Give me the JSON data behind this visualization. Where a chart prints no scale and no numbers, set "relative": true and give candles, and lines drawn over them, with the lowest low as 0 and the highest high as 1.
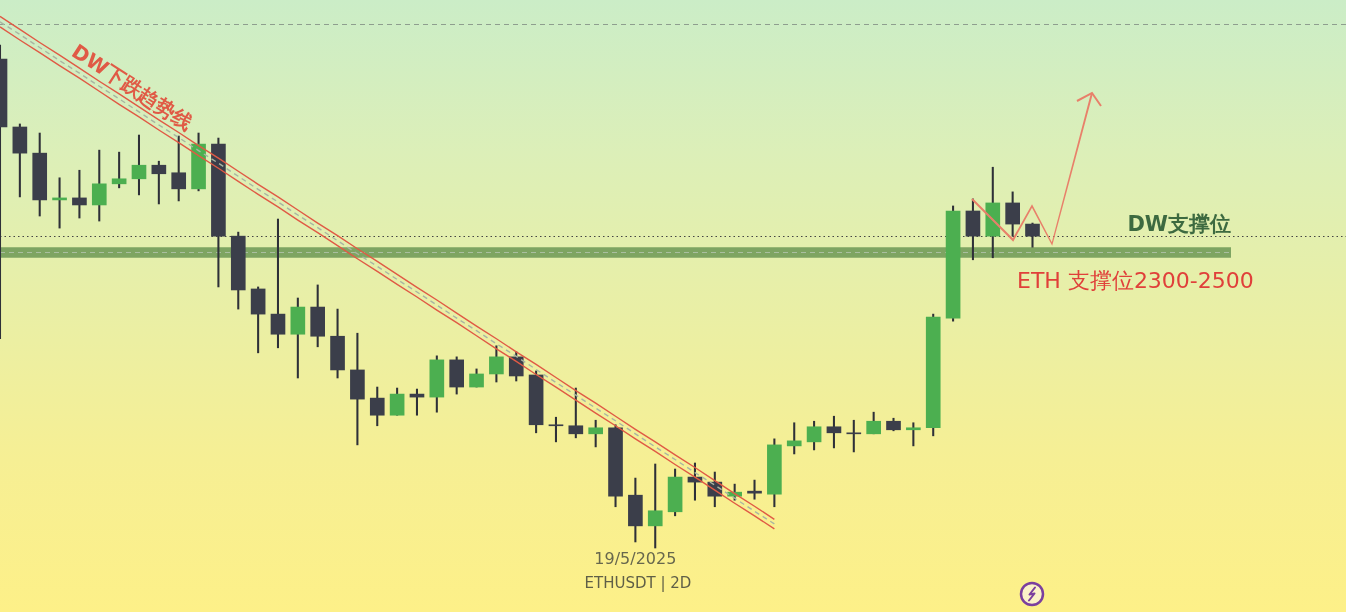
{
  "chart_data": {
    "type": "candlestick",
    "relative": true,
    "tick_labels": "x",
    "categories": [
      null,
      null,
      null,
      null,
      null,
      null,
      null,
      null,
      null,
      null,
      null,
      null,
      null,
      null,
      null,
      null,
      null,
      null,
      null,
      null,
      null,
      null,
      null,
      null,
      null,
      null,
      null,
      null,
      null,
      null,
      null,
      null,
      "19/5/2025",
      null,
      null,
      null,
      null,
      null,
      null,
      null,
      null,
      null,
      null,
      null,
      null,
      null,
      null,
      null,
      null,
      null,
      null,
      null,
      null
    ],
    "ohlc": [
      [
        0.972,
        1,
        0.416,
        0.837
      ],
      [
        0.837,
        0.843,
        0.698,
        0.785
      ],
      [
        0.785,
        0.825,
        0.66,
        0.692
      ],
      [
        0.692,
        0.736,
        0.636,
        0.696
      ],
      [
        0.696,
        0.751,
        0.656,
        0.682
      ],
      [
        0.682,
        0.791,
        0.65,
        0.724
      ],
      [
        0.724,
        0.787,
        0.716,
        0.734
      ],
      [
        0.734,
        0.821,
        0.702,
        0.761
      ],
      [
        0.761,
        0.769,
        0.684,
        0.744
      ],
      [
        0.746,
        0.819,
        0.69,
        0.714
      ],
      [
        0.714,
        0.825,
        0.71,
        0.803
      ],
      [
        0.803,
        0.815,
        0.519,
        0.62
      ],
      [
        0.62,
        0.628,
        0.475,
        0.513
      ],
      [
        0.515,
        0.519,
        0.388,
        0.465
      ],
      [
        0.465,
        0.654,
        0.398,
        0.425
      ],
      [
        0.425,
        0.497,
        0.338,
        0.479
      ],
      [
        0.479,
        0.523,
        0.4,
        0.421
      ],
      [
        0.421,
        0.475,
        0.338,
        0.354
      ],
      [
        0.354,
        0.427,
        0.205,
        0.296
      ],
      [
        0.298,
        0.32,
        0.243,
        0.264
      ],
      [
        0.264,
        0.318,
        0.264,
        0.306
      ],
      [
        0.306,
        0.316,
        0.264,
        0.3
      ],
      [
        0.3,
        0.382,
        0.27,
        0.374
      ],
      [
        0.374,
        0.38,
        0.306,
        0.32
      ],
      [
        0.32,
        0.356,
        0.32,
        0.346
      ],
      [
        0.346,
        0.402,
        0.33,
        0.38
      ],
      [
        0.38,
        0.39,
        0.332,
        0.342
      ],
      [
        0.344,
        0.352,
        0.229,
        0.245
      ],
      [
        0.245,
        0.26,
        0.211,
        0.243
      ],
      [
        0.243,
        0.318,
        0.219,
        0.227
      ],
      [
        0.227,
        0.254,
        0.201,
        0.239
      ],
      [
        0.239,
        0.245,
        0.082,
        0.103
      ],
      [
        0.105,
        0.139,
        0.012,
        0.044
      ],
      [
        0.044,
        0.167,
        0,
        0.074
      ],
      [
        0.072,
        0.157,
        0.064,
        0.141
      ],
      [
        0.141,
        0.169,
        0.095,
        0.131
      ],
      [
        0.131,
        0.151,
        0.082,
        0.103
      ],
      [
        0.103,
        0.127,
        0.095,
        0.111
      ],
      [
        0.113,
        0.135,
        0.097,
        0.109
      ],
      [
        0.107,
        0.217,
        0.082,
        0.205
      ],
      [
        0.203,
        0.249,
        0.187,
        0.213
      ],
      [
        0.211,
        0.252,
        0.195,
        0.241
      ],
      [
        0.241,
        0.262,
        0.199,
        0.229
      ],
      [
        0.229,
        0.254,
        0.191,
        0.227
      ],
      [
        0.227,
        0.27,
        0.227,
        0.252
      ],
      [
        0.252,
        0.258,
        0.233,
        0.235
      ],
      [
        0.235,
        0.249,
        0.203,
        0.239
      ],
      [
        0.239,
        0.465,
        0.223,
        0.459
      ],
      [
        0.457,
        0.68,
        0.451,
        0.67
      ],
      [
        0.67,
        0.694,
        0.573,
        0.62
      ],
      [
        0.62,
        0.757,
        0.577,
        0.686
      ],
      [
        0.686,
        0.708,
        0.62,
        0.644
      ],
      [
        0.644,
        0.646,
        0.598,
        0.62
      ]
    ],
    "colors": [
      "#3b3e4a",
      "#3b3e4a",
      "#3b3e4a",
      "#4caf50",
      "#3b3e4a",
      "#4caf50",
      "#4caf50",
      "#4caf50",
      "#3b3e4a",
      "#3b3e4a",
      "#4caf50",
      "#3b3e4a",
      "#3b3e4a",
      "#3b3e4a",
      "#3b3e4a",
      "#4caf50",
      "#3b3e4a",
      "#3b3e4a",
      "#3b3e4a",
      "#3b3e4a",
      "#4caf50",
      "#3b3e4a",
      "#4caf50",
      "#3b3e4a",
      "#4caf50",
      "#4caf50",
      "#3b3e4a",
      "#3b3e4a",
      "#3b3e4a",
      "#3b3e4a",
      "#4caf50",
      "#3b3e4a",
      "#3b3e4a",
      "#4caf50",
      "#4caf50",
      "#3b3e4a",
      "#3b3e4a",
      "#4caf50",
      "#3b3e4a",
      "#4caf50",
      "#4caf50",
      "#4caf50",
      "#3b3e4a",
      "#3b3e4a",
      "#4caf50",
      "#3b3e4a",
      "#4caf50",
      "#4caf50",
      "#4caf50",
      "#3b3e4a",
      "#4caf50",
      "#3b3e4a",
      "#3b3e4a"
    ],
    "series": [
      {
        "type": "line",
        "name": "DW下跌趋势线",
        "color": "#e05a45",
        "values": [
          1.057,
          1.031,
          1.005,
          0.98,
          0.954,
          0.928,
          0.903,
          0.877,
          0.851,
          0.826,
          0.8,
          0.775,
          0.749,
          0.723,
          0.698,
          0.672,
          0.646,
          0.621,
          0.595,
          0.57,
          0.544,
          0.518,
          0.493,
          0.467,
          0.441,
          0.416,
          0.39,
          0.365,
          0.339,
          0.313,
          0.288,
          0.262,
          0.236,
          0.211,
          0.185,
          0.16,
          0.134,
          0.108,
          0.083,
          0.057,
          null,
          null,
          null,
          null,
          null,
          null,
          null,
          null,
          null,
          null,
          null,
          null,
          null
        ]
      },
      {
        "type": "line",
        "color": "#e05a45",
        "values": [
          1.036,
          1.01,
          0.985,
          0.959,
          0.934,
          0.908,
          0.882,
          0.857,
          0.831,
          0.806,
          0.78,
          0.755,
          0.729,
          0.703,
          0.678,
          0.652,
          0.627,
          0.601,
          0.575,
          0.55,
          0.524,
          0.499,
          0.473,
          0.448,
          0.422,
          0.396,
          0.371,
          0.345,
          0.32,
          0.294,
          0.268,
          0.243,
          0.217,
          0.192,
          0.166,
          0.141,
          0.115,
          0.089,
          0.064,
          0.038,
          null,
          null,
          null,
          null,
          null,
          null,
          null,
          null,
          null,
          null,
          null,
          null,
          null
        ]
      },
      {
        "type": "line",
        "color": "#a9b5a2",
        "line_style": "dashed",
        "values": [
          1.046,
          1.021,
          0.995,
          0.969,
          0.944,
          0.918,
          0.893,
          0.867,
          0.841,
          0.816,
          0.79,
          0.765,
          0.739,
          0.713,
          0.688,
          0.662,
          0.637,
          0.611,
          0.585,
          0.56,
          0.534,
          0.509,
          0.483,
          0.457,
          0.432,
          0.406,
          0.381,
          0.355,
          0.329,
          0.304,
          0.278,
          0.253,
          0.227,
          0.201,
          0.176,
          0.15,
          0.125,
          0.099,
          0.073,
          0.048,
          null,
          null,
          null,
          null,
          null,
          null,
          null,
          null,
          null,
          null,
          null,
          null,
          null
        ]
      }
    ],
    "ref_lines": [
      {
        "axis": "y",
        "value": 1.042,
        "color": "#8e9e8e",
        "line_style": "dashed"
      },
      {
        "axis": "y",
        "value": 0.62,
        "color": "#444444",
        "line_style": "dotted"
      },
      {
        "axis": "y",
        "value": 0.588,
        "color": "#aabea0",
        "line_style": "dashed"
      }
    ],
    "bands": [
      {
        "axis": "y",
        "from": 0.577,
        "to": 0.598,
        "label": "DW支撑位",
        "color": "#7ea462"
      }
    ],
    "annotations": [
      "ETH 支撑位2300-2500",
      "ETHUSDT | 2D"
    ]
  }
}
